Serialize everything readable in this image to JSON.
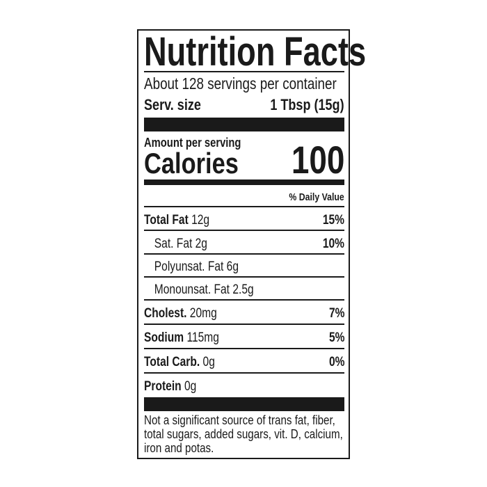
{
  "title": "Nutrition Facts",
  "servings_per_container": "About 128 servings per container",
  "serving_size": {
    "label": "Serv. size",
    "value": "1 Tbsp (15g)"
  },
  "amount_per_serving": "Amount per serving",
  "calories": {
    "label": "Calories",
    "value": "100"
  },
  "daily_value_header": "% Daily Value",
  "nutrients": [
    {
      "name": "Total Fat",
      "amount": "12g",
      "dv": "15%"
    },
    {
      "name": "Sat. Fat",
      "amount": "2g",
      "dv": "10%"
    },
    {
      "name": "Polyunsat. Fat",
      "amount": "6g",
      "dv": ""
    },
    {
      "name": "Monounsat. Fat",
      "amount": "2.5g",
      "dv": ""
    },
    {
      "name": "Cholest.",
      "amount": "20mg",
      "dv": "7%"
    },
    {
      "name": "Sodium",
      "amount": "115mg",
      "dv": "5%"
    },
    {
      "name": "Total Carb.",
      "amount": "0g",
      "dv": "0%"
    },
    {
      "name": "Protein",
      "amount": "0g",
      "dv": ""
    }
  ],
  "footnote": "Not a significant source of trans fat, fiber, total sugars, added sugars, vit. D, calcium, iron and potas."
}
